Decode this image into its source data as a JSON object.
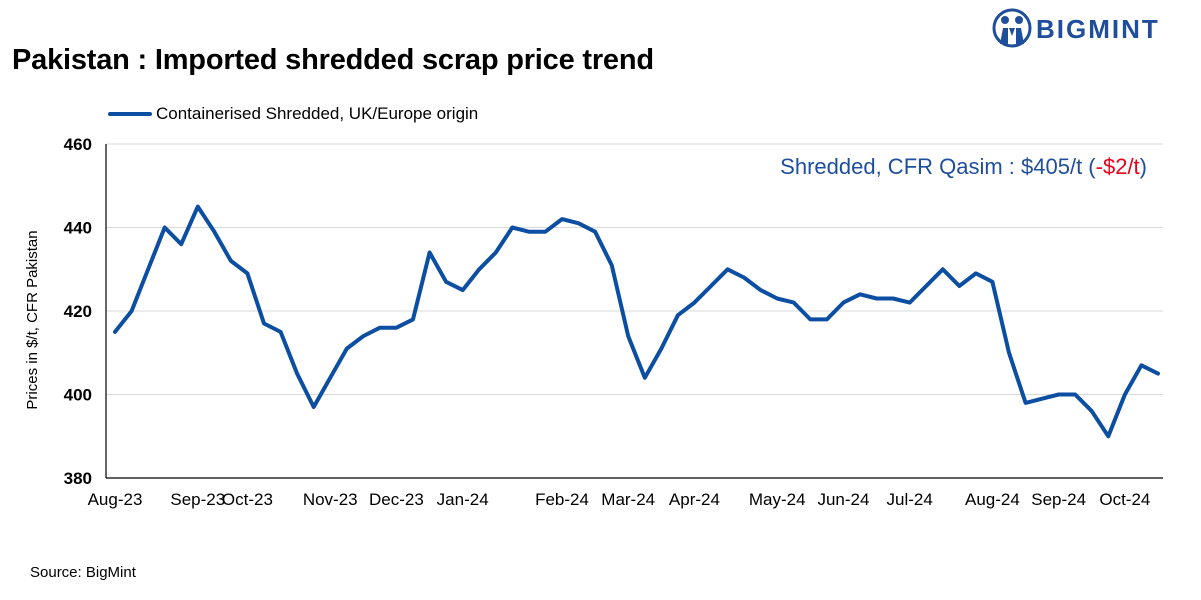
{
  "brand": {
    "name": "BIGMINT",
    "color": "#1f4e9c"
  },
  "source": "Source: BigMint",
  "chart_data": {
    "type": "line",
    "title": "Pakistan : Imported shredded scrap price trend",
    "ylabel": "Prices in $/t, CFR Pakistan",
    "xlabel": "",
    "ylim": [
      380,
      460
    ],
    "yticks": [
      380,
      400,
      420,
      440,
      460
    ],
    "grid": true,
    "legend_position": "top-left",
    "annotation": {
      "text": "Shredded, CFR Qasim : $405/t (",
      "change": "-$2/t",
      "close": ")",
      "color": "#1f4e9c",
      "change_color": "#e8001c"
    },
    "x_tick_labels": [
      {
        "index": 0,
        "label": "Aug-23"
      },
      {
        "index": 5,
        "label": "Sep-23"
      },
      {
        "index": 8,
        "label": "Oct-23"
      },
      {
        "index": 13,
        "label": "Nov-23"
      },
      {
        "index": 17,
        "label": "Dec-23"
      },
      {
        "index": 21,
        "label": "Jan-24"
      },
      {
        "index": 27,
        "label": "Feb-24"
      },
      {
        "index": 31,
        "label": "Mar-24"
      },
      {
        "index": 35,
        "label": "Apr-24"
      },
      {
        "index": 40,
        "label": "May-24"
      },
      {
        "index": 44,
        "label": "Jun-24"
      },
      {
        "index": 48,
        "label": "Jul-24"
      },
      {
        "index": 53,
        "label": "Aug-24"
      },
      {
        "index": 57,
        "label": "Sep-24"
      },
      {
        "index": 61,
        "label": "Oct-24"
      }
    ],
    "series": [
      {
        "name": "Containerised Shredded, UK/Europe origin",
        "color": "#0b4ea2",
        "values": [
          415,
          420,
          430,
          440,
          436,
          445,
          439,
          432,
          429,
          417,
          415,
          405,
          397,
          404,
          411,
          414,
          416,
          416,
          418,
          434,
          427,
          425,
          430,
          434,
          440,
          439,
          439,
          442,
          441,
          439,
          431,
          414,
          404,
          411,
          419,
          422,
          426,
          430,
          428,
          425,
          423,
          422,
          418,
          418,
          422,
          424,
          423,
          423,
          422,
          426,
          430,
          426,
          429,
          427,
          410,
          398,
          399,
          400,
          400,
          396,
          390,
          400,
          407,
          405
        ]
      }
    ]
  }
}
